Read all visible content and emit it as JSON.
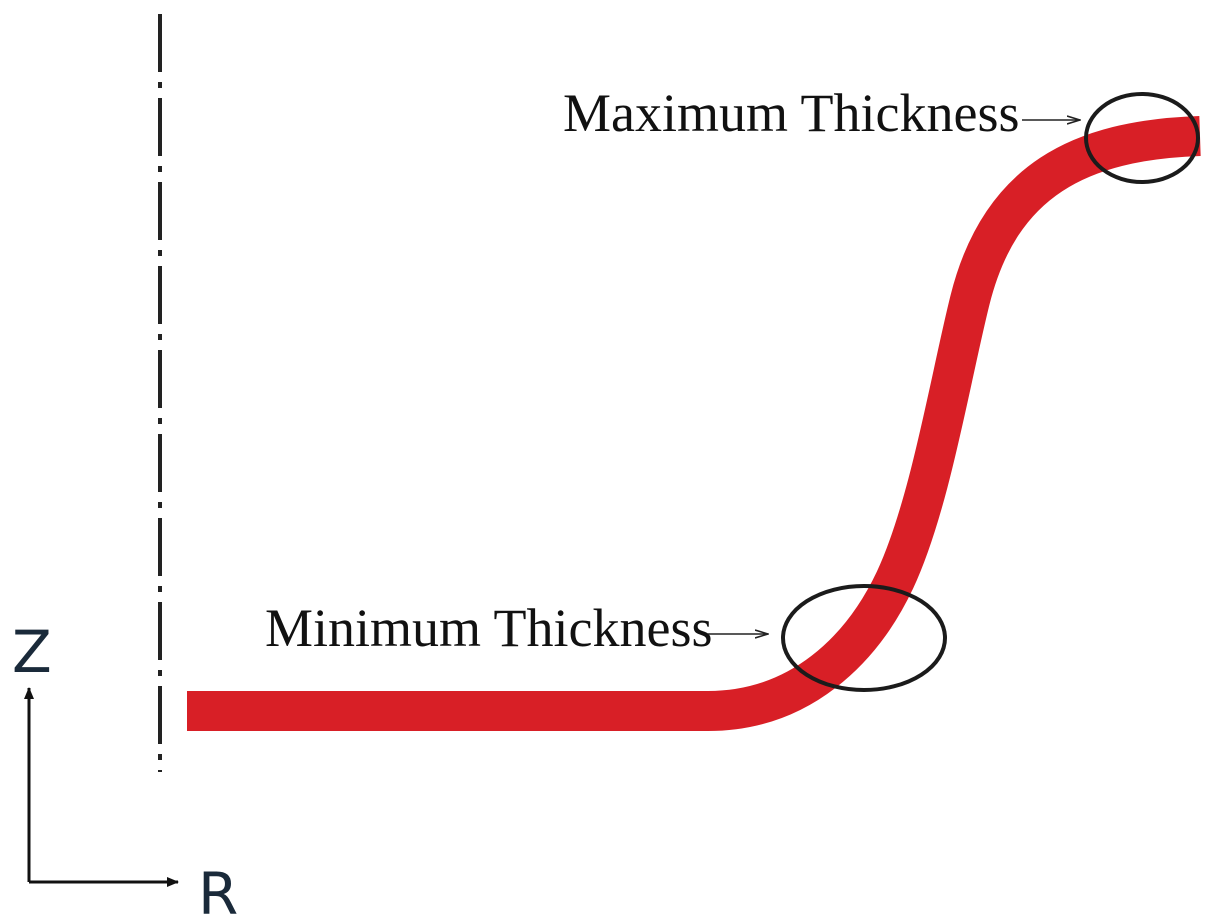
{
  "annotations": {
    "max_label": "Maximum Thickness",
    "min_label": "Minimum Thickness"
  },
  "axes": {
    "z_label": "Z",
    "r_label": "R"
  },
  "colors": {
    "profile": "#d81f26",
    "ellipse": "#1b1b1b",
    "axis": "#111111",
    "centerline": "#222222"
  }
}
